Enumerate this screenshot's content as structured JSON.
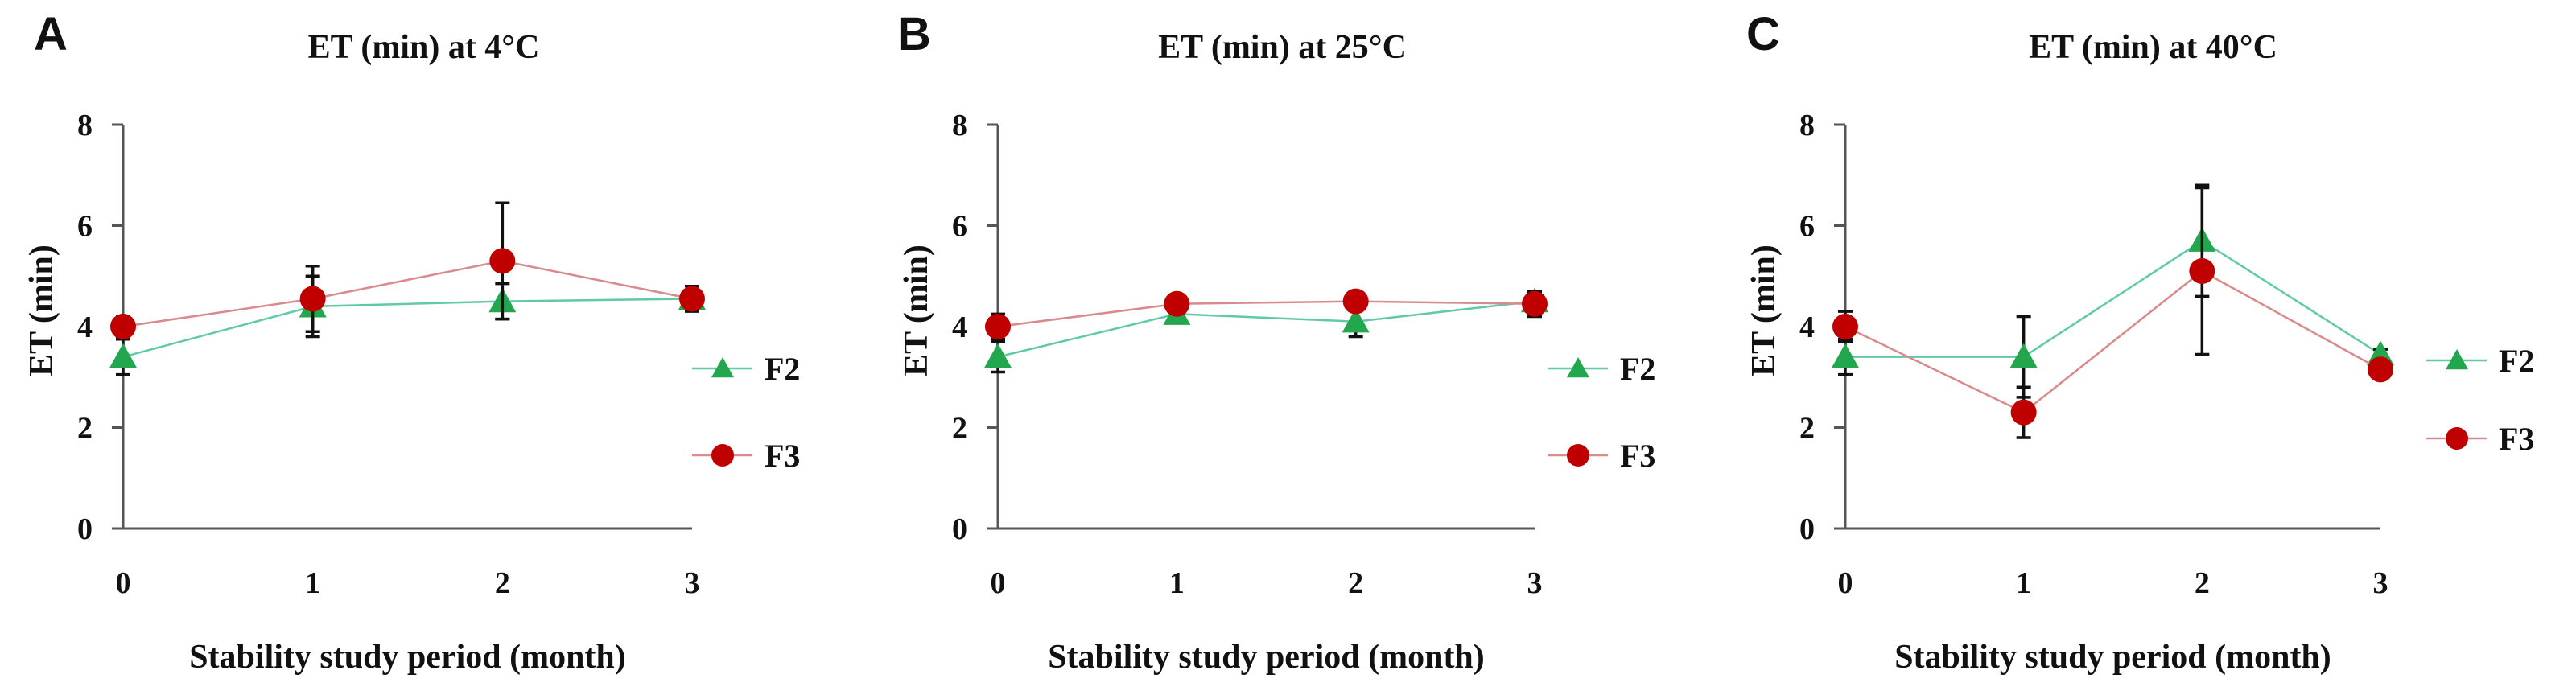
{
  "colors": {
    "F2": "#22a64e",
    "F2_line": "#5fcaa5",
    "F3": "#c00000",
    "F3_line": "#d98a8a",
    "axis": "#555555",
    "error": "#111111"
  },
  "chart_data": [
    {
      "panel": "A",
      "type": "line",
      "title": "ET (min) at 4°C",
      "xlabel": "Stability study period (month)",
      "ylabel": "ET (min)",
      "x": [
        0,
        1,
        2,
        3
      ],
      "x_tick_labels": [
        "0",
        "1",
        "2",
        "3"
      ],
      "ylim": [
        0,
        8
      ],
      "y_ticks": [
        0,
        2,
        4,
        6,
        8
      ],
      "y_tick_labels": [
        "0",
        "2",
        "4",
        "6",
        "8"
      ],
      "legend": [
        "F2",
        "F3"
      ],
      "legend_position": "right",
      "series": [
        {
          "name": "F2",
          "marker": "triangle",
          "values": [
            3.4,
            4.4,
            4.5,
            4.55
          ],
          "errors": [
            0.35,
            0.6,
            0.35,
            0.1
          ]
        },
        {
          "name": "F3",
          "marker": "circle",
          "values": [
            4.0,
            4.55,
            5.3,
            4.55
          ],
          "errors": [
            0.2,
            0.65,
            1.15,
            0.25
          ]
        }
      ]
    },
    {
      "panel": "B",
      "type": "line",
      "title": "ET (min) at 25°C",
      "xlabel": "Stability study period (month)",
      "ylabel": "ET (min)",
      "x": [
        0,
        1,
        2,
        3
      ],
      "x_tick_labels": [
        "0",
        "1",
        "2",
        "3"
      ],
      "ylim": [
        0,
        8
      ],
      "y_ticks": [
        0,
        2,
        4,
        6,
        8
      ],
      "y_tick_labels": [
        "0",
        "2",
        "4",
        "6",
        "8"
      ],
      "legend": [
        "F2",
        "F3"
      ],
      "legend_position": "right",
      "series": [
        {
          "name": "F2",
          "marker": "triangle",
          "values": [
            3.4,
            4.25,
            4.1,
            4.5
          ],
          "errors": [
            0.3,
            0.1,
            0.3,
            0.15
          ]
        },
        {
          "name": "F3",
          "marker": "circle",
          "values": [
            4.0,
            4.45,
            4.5,
            4.45
          ],
          "errors": [
            0.25,
            0.1,
            0.1,
            0.25
          ]
        }
      ]
    },
    {
      "panel": "C",
      "type": "line",
      "title": "ET (min) at 40°C",
      "xlabel": "Stability study period (month)",
      "ylabel": "ET (min)",
      "x": [
        0,
        1,
        2,
        3
      ],
      "x_tick_labels": [
        "0",
        "1",
        "2",
        "3"
      ],
      "ylim": [
        0,
        8
      ],
      "y_ticks": [
        0,
        2,
        4,
        6,
        8
      ],
      "y_tick_labels": [
        "0",
        "2",
        "4",
        "6",
        "8"
      ],
      "legend": [
        "F2",
        "F3"
      ],
      "legend_position": "right",
      "series": [
        {
          "name": "F2",
          "marker": "triangle",
          "values": [
            3.4,
            3.4,
            5.7,
            3.45
          ],
          "errors": [
            0.35,
            0.8,
            1.1,
            0.1
          ]
        },
        {
          "name": "F3",
          "marker": "circle",
          "values": [
            4.0,
            2.3,
            5.1,
            3.15
          ],
          "errors": [
            0.3,
            0.5,
            1.65,
            0.1
          ]
        }
      ]
    }
  ]
}
